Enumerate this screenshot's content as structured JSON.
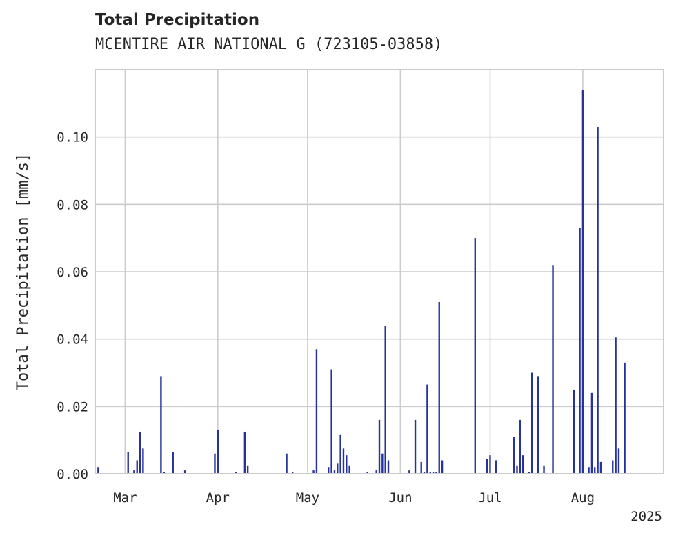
{
  "chart_data": {
    "type": "bar",
    "title": "Total Precipitation",
    "subtitle": "MCENTIRE AIR NATIONAL G (723105-03858)",
    "xlabel": "",
    "ylabel": "Total Precipitation [mm/s]",
    "x_tick_labels": [
      "Mar",
      "Apr",
      "May",
      "Jun",
      "Jul",
      "Aug"
    ],
    "x_offset_label": "2025",
    "y_ticks": [
      "0.00",
      "0.02",
      "0.04",
      "0.06",
      "0.08",
      "0.10"
    ],
    "xlim": [
      "2025-02-19",
      "2025-08-28"
    ],
    "ylim": [
      0,
      0.12
    ],
    "grid": true,
    "bar_color": "#27339a",
    "series": [
      {
        "x": [
          "2025-02-20",
          "2025-03-02",
          "2025-03-04",
          "2025-03-05",
          "2025-03-06",
          "2025-03-07",
          "2025-03-13",
          "2025-03-14",
          "2025-03-17",
          "2025-03-21",
          "2025-03-31",
          "2025-04-01",
          "2025-04-07",
          "2025-04-10",
          "2025-04-11",
          "2025-04-24",
          "2025-04-26",
          "2025-05-03",
          "2025-05-04",
          "2025-05-08",
          "2025-05-09",
          "2025-05-10",
          "2025-05-11",
          "2025-05-12",
          "2025-05-13",
          "2025-05-14",
          "2025-05-15",
          "2025-05-21",
          "2025-05-24",
          "2025-05-25",
          "2025-05-26",
          "2025-05-27",
          "2025-05-28",
          "2025-06-04",
          "2025-06-06",
          "2025-06-08",
          "2025-06-09",
          "2025-06-10",
          "2025-06-11",
          "2025-06-12",
          "2025-06-13",
          "2025-06-14",
          "2025-06-15",
          "2025-06-26",
          "2025-06-30",
          "2025-07-01",
          "2025-07-03",
          "2025-07-09",
          "2025-07-10",
          "2025-07-11",
          "2025-07-12",
          "2025-07-14",
          "2025-07-15",
          "2025-07-17",
          "2025-07-19",
          "2025-07-22",
          "2025-07-29",
          "2025-07-31",
          "2025-08-01",
          "2025-08-03",
          "2025-08-04",
          "2025-08-05",
          "2025-08-06",
          "2025-08-07",
          "2025-08-11",
          "2025-08-12",
          "2025-08-13",
          "2025-08-15"
        ],
        "values": [
          0.002,
          0.0065,
          0.001,
          0.004,
          0.0125,
          0.0075,
          0.029,
          0.0005,
          0.0065,
          0.001,
          0.006,
          0.013,
          0.0005,
          0.0125,
          0.0025,
          0.006,
          0.0005,
          0.001,
          0.037,
          0.002,
          0.031,
          0.001,
          0.003,
          0.0115,
          0.0075,
          0.0055,
          0.0025,
          0.0005,
          0.001,
          0.016,
          0.006,
          0.044,
          0.004,
          0.001,
          0.016,
          0.0035,
          0.0005,
          0.0265,
          0.0005,
          0.0005,
          0.0005,
          0.051,
          0.004,
          0.07,
          0.0045,
          0.0055,
          0.004,
          0.011,
          0.0025,
          0.016,
          0.0055,
          0.0005,
          0.03,
          0.029,
          0.0025,
          0.062,
          0.025,
          0.073,
          0.114,
          0.002,
          0.024,
          0.002,
          0.103,
          0.0035,
          0.004,
          0.0405,
          0.0075,
          0.033
        ]
      }
    ]
  }
}
